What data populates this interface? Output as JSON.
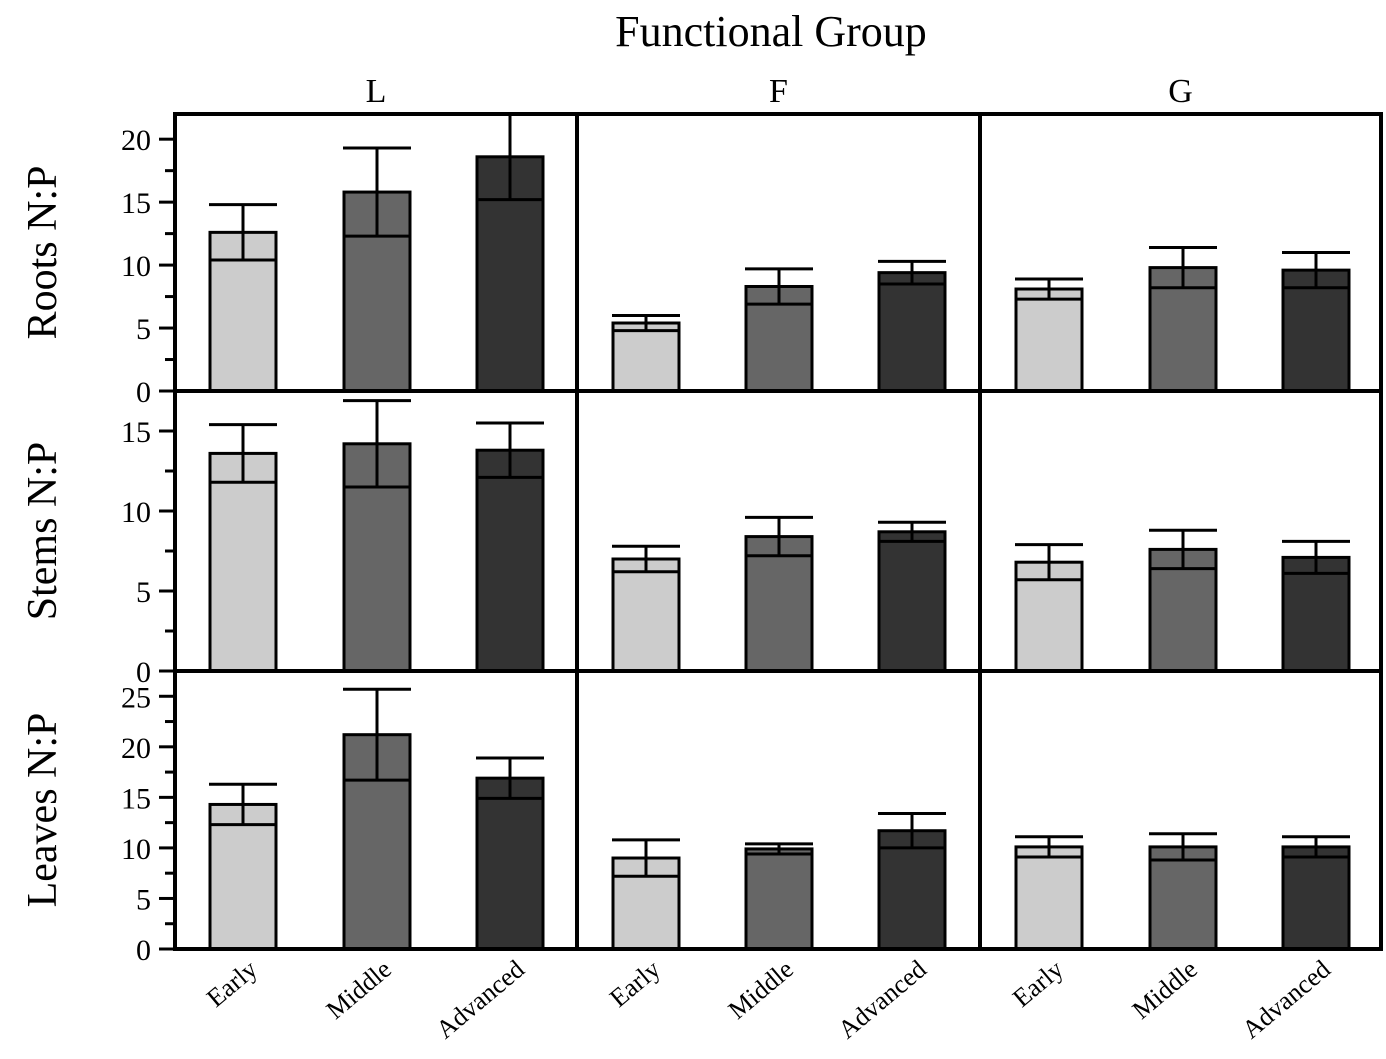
{
  "chart_data": {
    "type": "bar",
    "title": "Functional Group",
    "categories": [
      "Early",
      "Middle",
      "Advanced"
    ],
    "colors": [
      "#cccccc",
      "#666666",
      "#333333"
    ],
    "columns": [
      "L",
      "F",
      "G"
    ],
    "rows": [
      {
        "ylabel": "Roots N:P",
        "ylim": [
          0,
          22
        ],
        "yticks": [
          0,
          5,
          10,
          15,
          20
        ],
        "minor_step": 2.5,
        "series": [
          {
            "group": "L",
            "values": [
              12.6,
              15.8,
              18.6
            ],
            "errors": [
              2.2,
              3.5,
              3.4
            ]
          },
          {
            "group": "F",
            "values": [
              5.4,
              8.3,
              9.4
            ],
            "errors": [
              0.6,
              1.4,
              0.9
            ]
          },
          {
            "group": "G",
            "values": [
              8.1,
              9.8,
              9.6
            ],
            "errors": [
              0.8,
              1.6,
              1.4
            ]
          }
        ]
      },
      {
        "ylabel": "Stems N:P",
        "ylim": [
          0,
          17.5
        ],
        "yticks": [
          0,
          5,
          10,
          15
        ],
        "minor_step": 2.5,
        "series": [
          {
            "group": "L",
            "values": [
              13.6,
              14.2,
              13.8
            ],
            "errors": [
              1.8,
              2.7,
              1.7
            ]
          },
          {
            "group": "F",
            "values": [
              7.0,
              8.4,
              8.7
            ],
            "errors": [
              0.8,
              1.2,
              0.6
            ]
          },
          {
            "group": "G",
            "values": [
              6.8,
              7.6,
              7.1
            ],
            "errors": [
              1.1,
              1.2,
              1.0
            ]
          }
        ]
      },
      {
        "ylabel": "Leaves N:P",
        "ylim": [
          0,
          27.5
        ],
        "yticks": [
          0,
          5,
          10,
          15,
          20,
          25
        ],
        "minor_step": 2.5,
        "series": [
          {
            "group": "L",
            "values": [
              14.3,
              21.2,
              16.9
            ],
            "errors": [
              2.0,
              4.5,
              2.0
            ]
          },
          {
            "group": "F",
            "values": [
              9.0,
              9.9,
              11.7
            ],
            "errors": [
              1.8,
              0.5,
              1.7
            ]
          },
          {
            "group": "G",
            "values": [
              10.1,
              10.1,
              10.1
            ],
            "errors": [
              1.0,
              1.3,
              1.0
            ]
          }
        ]
      }
    ]
  }
}
